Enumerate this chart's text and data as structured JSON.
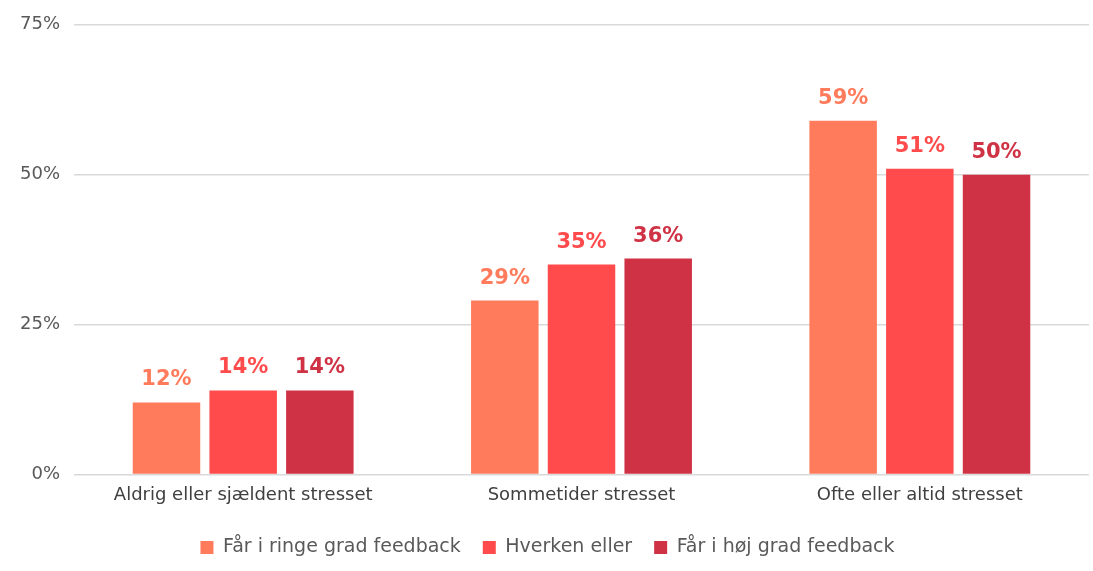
{
  "chart_data": {
    "type": "bar",
    "categories": [
      "Aldrig eller sjældent stresset",
      "Sommetider stresset",
      "Ofte eller altid stresset"
    ],
    "series": [
      {
        "name": "Får i ringe grad feedback",
        "color": "#ff7b5c",
        "values": [
          12,
          29,
          59
        ],
        "value_labels": [
          "12%",
          "29%",
          "59%"
        ]
      },
      {
        "name": "Hverken eller",
        "color": "#ff4b4b",
        "values": [
          14,
          35,
          51
        ],
        "value_labels": [
          "14%",
          "35%",
          "51%"
        ]
      },
      {
        "name": "Får i høj grad feedback",
        "color": "#d03245",
        "values": [
          14,
          36,
          50
        ],
        "value_labels": [
          "14%",
          "36%",
          "50%"
        ]
      }
    ],
    "ylim": [
      0,
      75
    ],
    "yticks": [
      {
        "value": 0,
        "label": "0%"
      },
      {
        "value": 25,
        "label": "25%"
      },
      {
        "value": 50,
        "label": "50%"
      },
      {
        "value": 75,
        "label": "75%"
      }
    ],
    "grid": "y",
    "legend": "bottom"
  }
}
